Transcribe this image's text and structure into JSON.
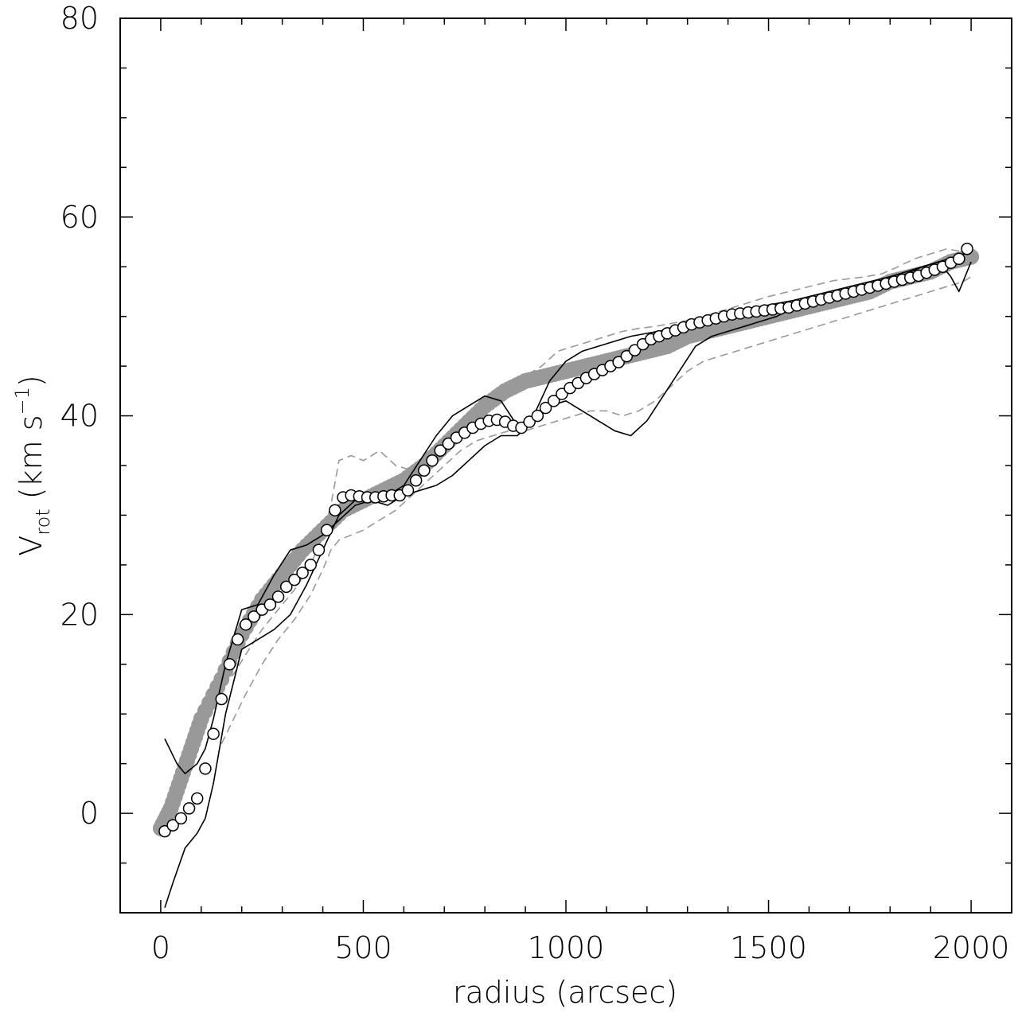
{
  "chart_data": {
    "type": "line",
    "xlabel": "radius (arcsec)",
    "ylabel": {
      "main": "V",
      "subscript": "rot",
      "units_prefix": " (km s",
      "superscript": "−1",
      "units_suffix": ")"
    },
    "xlim": [
      -100,
      2100
    ],
    "ylim": [
      -10,
      80
    ],
    "x_ticks": [
      0,
      500,
      1000,
      1500,
      2000
    ],
    "y_ticks": [
      0,
      20,
      40,
      60,
      80
    ],
    "x_minor_step": 100,
    "y_minor_step": 5,
    "grid": false,
    "legend": "none",
    "colors": {
      "filled_circles": "#999999",
      "dashed_lines": "#999999",
      "solid_lines": "#000000",
      "open_circles": "#000000"
    },
    "series": [
      {
        "style": "filled-circles",
        "x": [
          0,
          25,
          50,
          75,
          100,
          150,
          200,
          250,
          300,
          350,
          400,
          450,
          500,
          550,
          600,
          650,
          700,
          750,
          800,
          850,
          900,
          950,
          1000,
          1050,
          1100,
          1150,
          1200,
          1250,
          1300,
          1350,
          1400,
          1450,
          1500,
          1550,
          1600,
          1650,
          1700,
          1750,
          1800,
          1850,
          1900,
          1950,
          2000
        ],
        "y": [
          -1.5,
          0.5,
          3.5,
          6.5,
          9.5,
          13.5,
          18.0,
          21.5,
          24.0,
          26.5,
          28.5,
          30.5,
          31.5,
          32.5,
          33.5,
          35.0,
          37.0,
          39.0,
          41.0,
          42.5,
          43.5,
          44.0,
          44.5,
          45.0,
          45.5,
          46.0,
          46.5,
          47.0,
          48.0,
          48.5,
          49.0,
          49.5,
          50.0,
          50.5,
          51.0,
          51.5,
          52.0,
          52.5,
          53.5,
          54.0,
          54.5,
          55.5,
          56.0
        ]
      },
      {
        "style": "open-circles",
        "x": [
          10,
          30,
          50,
          70,
          90,
          110,
          130,
          150,
          170,
          190,
          210,
          230,
          250,
          270,
          290,
          310,
          330,
          350,
          370,
          390,
          410,
          430,
          450,
          470,
          490,
          510,
          530,
          550,
          570,
          590,
          610,
          630,
          650,
          670,
          690,
          710,
          730,
          750,
          770,
          790,
          810,
          830,
          850,
          870,
          890,
          910,
          930,
          950,
          970,
          990,
          1010,
          1030,
          1050,
          1070,
          1090,
          1110,
          1130,
          1150,
          1170,
          1190,
          1210,
          1230,
          1250,
          1270,
          1290,
          1310,
          1330,
          1350,
          1370,
          1390,
          1410,
          1430,
          1450,
          1470,
          1490,
          1510,
          1530,
          1550,
          1570,
          1590,
          1610,
          1630,
          1650,
          1670,
          1690,
          1710,
          1730,
          1750,
          1770,
          1790,
          1810,
          1830,
          1850,
          1870,
          1890,
          1910,
          1930,
          1950,
          1970,
          1990
        ],
        "y": [
          -1.8,
          -1.2,
          -0.5,
          0.5,
          1.5,
          4.5,
          8.0,
          11.5,
          15.0,
          17.5,
          19.0,
          19.8,
          20.5,
          21.0,
          21.8,
          22.8,
          23.5,
          24.2,
          25.0,
          26.5,
          28.5,
          30.5,
          31.8,
          32.0,
          31.9,
          31.8,
          31.8,
          31.9,
          32.0,
          32.0,
          32.5,
          33.5,
          34.5,
          35.5,
          36.5,
          37.2,
          37.8,
          38.3,
          38.8,
          39.2,
          39.5,
          39.6,
          39.4,
          39.0,
          38.8,
          39.4,
          40.0,
          40.8,
          41.5,
          42.2,
          42.8,
          43.3,
          43.8,
          44.2,
          44.6,
          45.0,
          45.4,
          46.0,
          46.6,
          47.2,
          47.7,
          48.0,
          48.3,
          48.6,
          48.9,
          49.2,
          49.4,
          49.6,
          49.8,
          50.0,
          50.2,
          50.3,
          50.4,
          50.5,
          50.6,
          50.7,
          50.8,
          50.9,
          51.1,
          51.3,
          51.5,
          51.7,
          51.9,
          52.1,
          52.3,
          52.5,
          52.7,
          52.9,
          53.1,
          53.3,
          53.5,
          53.7,
          53.9,
          54.1,
          54.4,
          54.7,
          55.0,
          55.4,
          55.8,
          56.8
        ]
      },
      {
        "style": "solid-line",
        "x": [
          10,
          40,
          60,
          90,
          110,
          130,
          160,
          200,
          240,
          280,
          320,
          360,
          400,
          440,
          480,
          520,
          560,
          600,
          640,
          680,
          720,
          760,
          800,
          840,
          880,
          920,
          960,
          1000,
          1040,
          1080,
          1120,
          1160,
          1200,
          1240,
          1280,
          1320,
          1360,
          1400,
          1440,
          1480,
          1520,
          1560,
          1600,
          1640,
          1680,
          1720,
          1760,
          1800,
          1840,
          1880,
          1920,
          1960,
          2000
        ],
        "y": [
          7.5,
          5.0,
          4.0,
          5.0,
          6.5,
          9.5,
          15.0,
          20.5,
          21.0,
          24.0,
          26.5,
          27.0,
          28.0,
          29.5,
          31.0,
          31.5,
          32.0,
          33.0,
          35.5,
          38.0,
          40.0,
          41.0,
          42.0,
          41.5,
          39.0,
          40.0,
          43.5,
          45.5,
          46.5,
          47.0,
          47.5,
          48.0,
          48.3,
          48.6,
          48.9,
          49.2,
          49.6,
          50.0,
          50.5,
          51.0,
          51.3,
          51.6,
          52.0,
          52.4,
          52.8,
          53.2,
          53.6,
          54.0,
          54.5,
          55.0,
          55.5,
          56.0,
          56.5
        ]
      },
      {
        "style": "solid-line",
        "x": [
          10,
          30,
          60,
          90,
          110,
          130,
          160,
          200,
          240,
          280,
          320,
          360,
          400,
          440,
          480,
          520,
          560,
          600,
          640,
          680,
          720,
          760,
          800,
          840,
          880,
          920,
          960,
          1000,
          1040,
          1080,
          1120,
          1160,
          1200,
          1240,
          1280,
          1320,
          1360,
          1400,
          1440,
          1480,
          1520,
          1560,
          1600,
          1640,
          1680,
          1720,
          1760,
          1800,
          1840,
          1880,
          1920,
          1950,
          1970,
          2000
        ],
        "y": [
          -9.5,
          -7.0,
          -3.5,
          -2.0,
          -0.5,
          3.0,
          10.0,
          16.5,
          17.5,
          18.5,
          20.0,
          23.0,
          26.5,
          30.0,
          31.5,
          31.5,
          31.0,
          32.0,
          32.5,
          33.0,
          34.0,
          35.5,
          37.0,
          38.0,
          38.0,
          39.5,
          41.0,
          41.5,
          40.5,
          39.5,
          38.5,
          38.0,
          39.5,
          42.0,
          44.5,
          47.0,
          48.0,
          48.5,
          49.0,
          49.5,
          50.0,
          50.8,
          51.3,
          51.7,
          52.2,
          52.7,
          53.2,
          53.8,
          54.3,
          55.0,
          55.5,
          54.0,
          52.5,
          55.5
        ]
      },
      {
        "style": "dashed-line",
        "x": [
          150,
          180,
          210,
          250,
          290,
          330,
          370,
          400,
          420,
          440,
          470,
          500,
          540,
          580,
          620,
          660,
          700,
          740,
          780,
          820,
          860,
          900,
          940,
          980,
          1020,
          1060,
          1100,
          1140,
          1180,
          1220,
          1260,
          1300,
          1340,
          1380,
          1420,
          1460,
          1500,
          1540,
          1580,
          1620,
          1660,
          1700,
          1740,
          1780,
          1820,
          1860,
          1900,
          1940,
          1980,
          2000
        ],
        "y": [
          13.0,
          14.0,
          16.0,
          18.5,
          20.5,
          22.5,
          25.0,
          28.0,
          31.0,
          35.5,
          36.0,
          35.5,
          36.5,
          35.0,
          34.5,
          36.0,
          37.0,
          38.5,
          40.0,
          42.5,
          43.5,
          44.0,
          45.0,
          46.5,
          47.0,
          47.5,
          48.0,
          48.5,
          48.8,
          49.0,
          49.3,
          49.6,
          50.0,
          50.5,
          51.0,
          51.5,
          52.0,
          52.4,
          52.8,
          53.2,
          53.6,
          53.8,
          54.0,
          54.3,
          55.0,
          55.8,
          56.3,
          56.8,
          56.5,
          57.0
        ]
      },
      {
        "style": "dashed-line",
        "x": [
          150,
          180,
          210,
          250,
          290,
          330,
          370,
          400,
          420,
          440,
          470,
          500,
          540,
          580,
          620,
          660,
          700,
          740,
          780,
          820,
          860,
          900,
          940,
          980,
          1020,
          1060,
          1100,
          1140,
          1180,
          1220,
          1260,
          1300,
          1340,
          1380,
          1420,
          1460,
          1500,
          1540,
          1580,
          1620,
          1660,
          1700,
          1740,
          1780,
          1820,
          1860,
          1900,
          1940,
          1980,
          2000
        ],
        "y": [
          7.0,
          9.5,
          12.0,
          15.0,
          17.5,
          19.5,
          22.0,
          24.5,
          26.5,
          27.5,
          28.0,
          28.5,
          29.5,
          30.5,
          32.0,
          33.5,
          35.0,
          36.5,
          37.5,
          38.0,
          38.5,
          38.5,
          39.0,
          39.5,
          40.0,
          40.5,
          40.5,
          40.0,
          40.5,
          41.5,
          43.0,
          44.5,
          45.5,
          46.0,
          46.5,
          47.0,
          47.5,
          48.0,
          48.5,
          49.0,
          49.5,
          50.0,
          50.5,
          51.0,
          51.5,
          52.0,
          52.5,
          53.0,
          53.5,
          54.0
        ]
      }
    ]
  }
}
